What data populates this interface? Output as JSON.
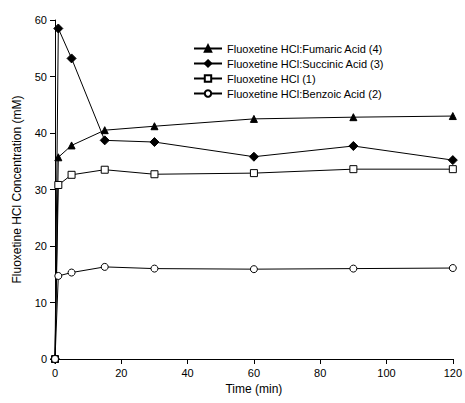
{
  "chart_data": {
    "type": "line",
    "x_label": "Time (min)",
    "y_label": "Fluoxetine HCl Concentration (mM)",
    "x": [
      0,
      1,
      5,
      15,
      30,
      60,
      90,
      120
    ],
    "series": [
      {
        "name": "Fluoxetine HCl:Fumaric Acid (4)",
        "color": "#000000",
        "marker": "triangle",
        "values": [
          0,
          35.7,
          37.8,
          40.5,
          41.2,
          42.5,
          42.8,
          43.0
        ]
      },
      {
        "name": "Fluoxetine HCl:Succinic Acid (3)",
        "color": "#000000",
        "marker": "diamond",
        "values": [
          0,
          58.5,
          53.2,
          38.7,
          38.4,
          35.8,
          37.7,
          35.2
        ]
      },
      {
        "name": "Fluoxetine HCl (1)",
        "color": "#000000",
        "marker": "open square",
        "values": [
          0,
          30.8,
          32.6,
          33.5,
          32.7,
          32.9,
          33.6,
          33.6
        ]
      },
      {
        "name": "Fluoxetine HCl:Benzoic Acid (2)",
        "color": "#000000",
        "marker": "open circle",
        "values": [
          0,
          14.7,
          15.3,
          16.3,
          16.0,
          15.9,
          16.0,
          16.1
        ]
      }
    ],
    "xlim": [
      0,
      120
    ],
    "xticks": [
      0,
      20,
      40,
      60,
      80,
      100,
      120
    ],
    "ylim": [
      0,
      60
    ],
    "yticks": [
      0,
      10,
      20,
      30,
      40,
      50,
      60
    ],
    "grid": false,
    "legend": "upper right"
  }
}
